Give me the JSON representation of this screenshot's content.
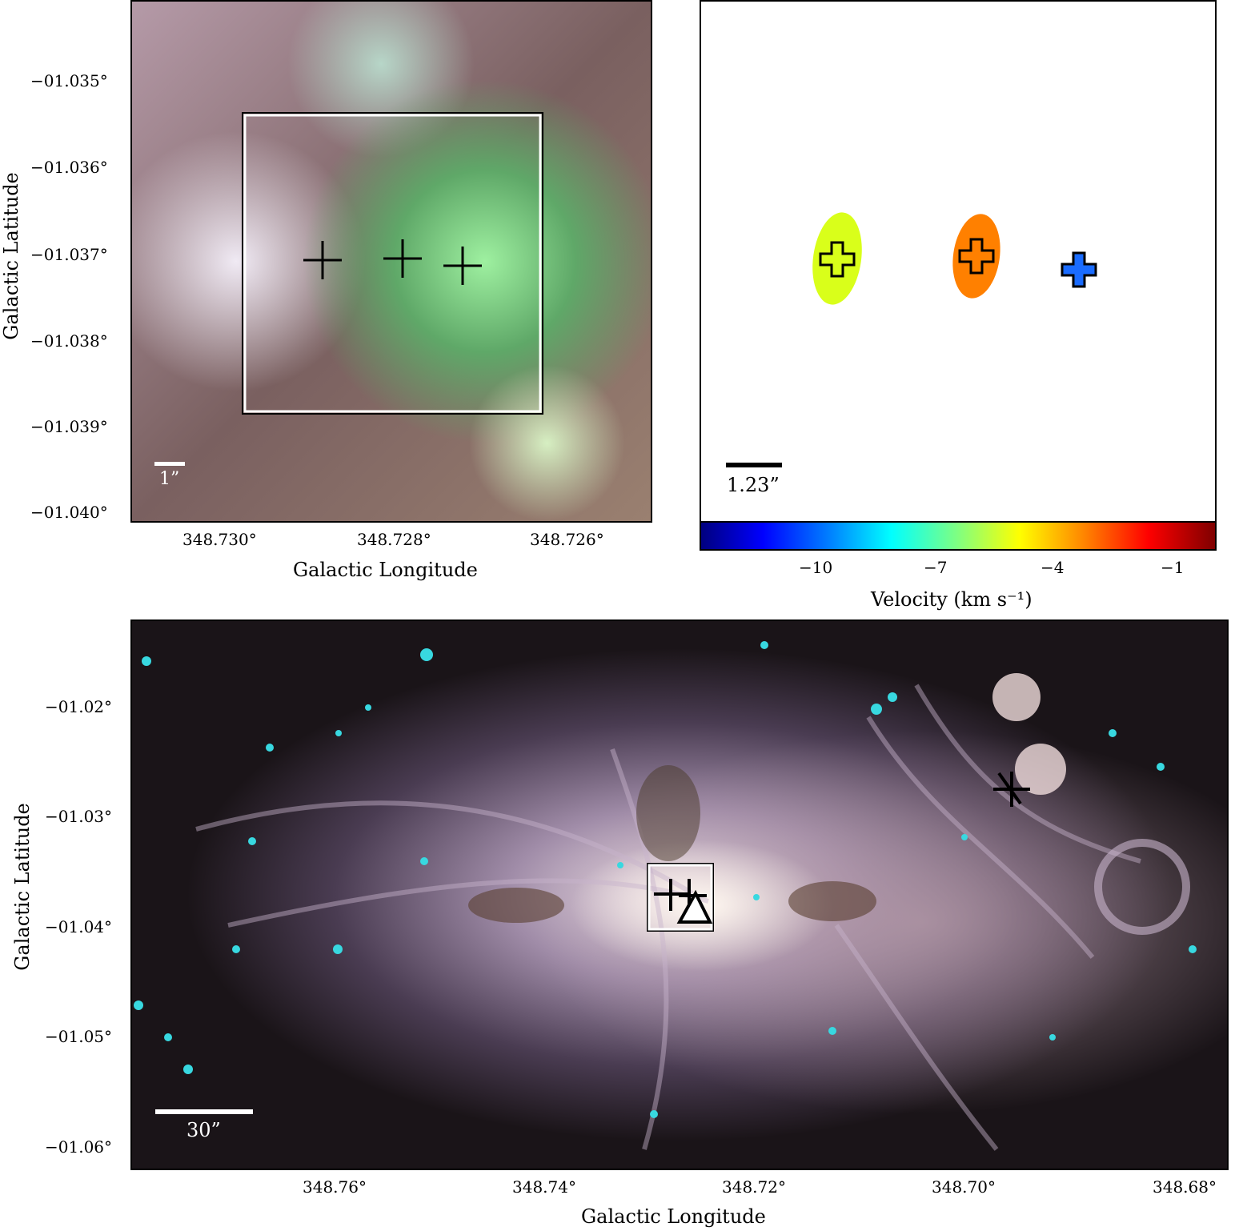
{
  "top_left": {
    "ylabel": "Galactic Latitude",
    "xlabel": "Galactic Longitude",
    "yticks": [
      "−01.035°",
      "−01.036°",
      "−01.037°",
      "−01.038°",
      "−01.039°",
      "−01.040°"
    ],
    "xticks": [
      "348.730°",
      "348.728°",
      "348.726°"
    ],
    "scalebar_label": "1”"
  },
  "top_right": {
    "scalebar_label": "1.23”",
    "colorbar": {
      "ticks": [
        "−10",
        "−7",
        "−4",
        "−1"
      ],
      "label": "Velocity (km s⁻¹)",
      "colormap": "jet"
    },
    "sources": [
      {
        "shape": "ellipse",
        "color": "#d9ff1a"
      },
      {
        "shape": "ellipse",
        "color": "#ff8000"
      },
      {
        "shape": "cross",
        "color": "#1a6cff"
      }
    ]
  },
  "bottom": {
    "ylabel": "Galactic Latitude",
    "xlabel": "Galactic Longitude",
    "yticks": [
      "−01.02°",
      "−01.03°",
      "−01.04°",
      "−01.05°",
      "−01.06°"
    ],
    "xticks": [
      "348.76°",
      "348.74°",
      "348.72°",
      "348.70°",
      "348.68°"
    ],
    "scalebar_label": "30”"
  }
}
